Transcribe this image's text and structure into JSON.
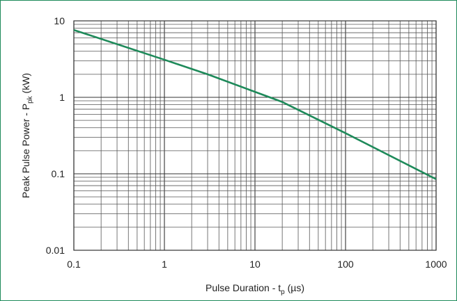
{
  "chart_data": {
    "type": "line",
    "x_scale": "log",
    "y_scale": "log",
    "xlim": [
      0.1,
      1000
    ],
    "ylim": [
      0.01,
      10
    ],
    "grid": true,
    "xlabel": {
      "main": "Pulse Duration - t",
      "sub": "p",
      "unit": " (µs)"
    },
    "ylabel": {
      "main": "Peak Pulse Power - P",
      "sub": "pk",
      "unit": " (kW)"
    },
    "x_ticks": [
      {
        "value": 0.1,
        "label": "0.1"
      },
      {
        "value": 1,
        "label": "1"
      },
      {
        "value": 10,
        "label": "10"
      },
      {
        "value": 100,
        "label": "100"
      },
      {
        "value": 1000,
        "label": "1000"
      }
    ],
    "y_ticks": [
      {
        "value": 0.01,
        "label": "0.01"
      },
      {
        "value": 0.1,
        "label": "0.1"
      },
      {
        "value": 1,
        "label": "1"
      },
      {
        "value": 10,
        "label": "10"
      }
    ],
    "series": [
      {
        "color": "#1e8a5a",
        "x": [
          0.1,
          1,
          3,
          20,
          100,
          1000
        ],
        "y": [
          7.6,
          3.1,
          2.0,
          0.87,
          0.34,
          0.085
        ]
      }
    ]
  }
}
